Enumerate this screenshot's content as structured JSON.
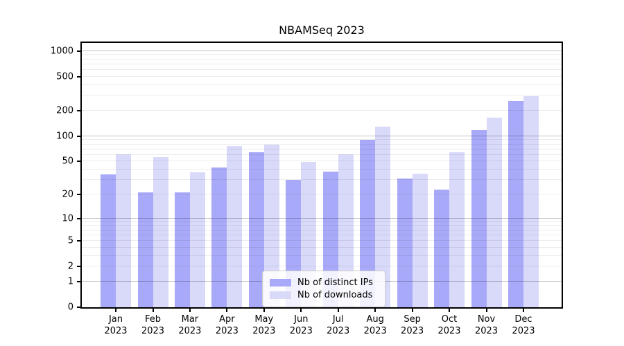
{
  "chart_data": {
    "type": "bar",
    "title": "NBAMSeq 2023",
    "categories": [
      "Jan",
      "Feb",
      "Mar",
      "Apr",
      "May",
      "Jun",
      "Jul",
      "Aug",
      "Sep",
      "Oct",
      "Nov",
      "Dec"
    ],
    "year_label": "2023",
    "series": [
      {
        "name": "Nb of distinct IPs",
        "color": "#a9a9f9",
        "values": [
          35,
          21,
          21,
          42,
          65,
          30,
          38,
          90,
          31,
          23,
          118,
          258
        ]
      },
      {
        "name": "Nb of downloads",
        "color": "#d9d9f9",
        "values": [
          61,
          56,
          37,
          76,
          80,
          49,
          61,
          130,
          36,
          65,
          166,
          298
        ]
      }
    ],
    "y_axis": {
      "scale": "log10(1+x)",
      "tick_values": [
        0,
        1,
        2,
        5,
        10,
        20,
        50,
        100,
        200,
        500,
        1000
      ],
      "tick_labels": [
        "0",
        "1",
        "2",
        "5",
        "10",
        "20",
        "50",
        "100",
        "200",
        "500",
        "1000"
      ],
      "major_gridlines": [
        1,
        10,
        100,
        1000
      ],
      "minor_gridlines": [
        2,
        3,
        4,
        5,
        6,
        7,
        8,
        9,
        20,
        30,
        40,
        50,
        60,
        70,
        80,
        90,
        200,
        300,
        400,
        500,
        600,
        700,
        800,
        900
      ],
      "ylim": [
        0,
        1235
      ]
    },
    "legend": {
      "position": "lower center"
    },
    "grid": "on",
    "colors": {
      "background": "#ffffff",
      "spine": "#000000",
      "grid_minor": "#ececec",
      "grid_major": "#c2c2c2",
      "legend_border": "#cccccc"
    }
  }
}
